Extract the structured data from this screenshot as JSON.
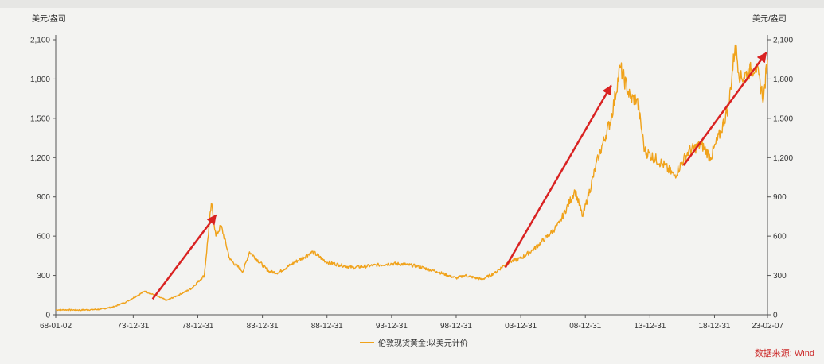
{
  "chart_data": {
    "type": "line",
    "y_unit_left": "美元/盎司",
    "y_unit_right": "美元/盎司",
    "ylim": [
      0,
      2100
    ],
    "y_ticks": [
      0,
      300,
      600,
      900,
      "1,200",
      "1,500",
      "1,800",
      "2,100"
    ],
    "y_tick_labels": [
      "0",
      "300",
      "600",
      "900",
      "1,200",
      "1,500",
      "1,800",
      "2,100"
    ],
    "x_tick_labels": [
      "68-01-02",
      "73-12-31",
      "78-12-31",
      "83-12-31",
      "88-12-31",
      "93-12-31",
      "98-12-31",
      "03-12-31",
      "08-12-31",
      "13-12-31",
      "18-12-31",
      "23-02-07"
    ],
    "x_tick_years": [
      1968.0,
      1974.0,
      1979.0,
      1984.0,
      1989.0,
      1994.0,
      1999.0,
      2004.0,
      2009.0,
      2014.0,
      2019.0,
      2023.1
    ],
    "grid": false,
    "legend_position": "bottom-center",
    "series": [
      {
        "name": "伦敦现货黄金:以美元计价",
        "color": "#f0a21a",
        "x": [
          1968.0,
          1970.0,
          1971.5,
          1972.5,
          1973.5,
          1974.9,
          1976.6,
          1977.5,
          1978.5,
          1979.5,
          1980.05,
          1980.4,
          1980.8,
          1981.5,
          1982.5,
          1983.0,
          1984.5,
          1985.2,
          1986.5,
          1987.9,
          1989.0,
          1990.0,
          1991.0,
          1993.0,
          1994.0,
          1995.0,
          1996.0,
          1997.5,
          1999.0,
          1999.7,
          2001.0,
          2002.0,
          2003.0,
          2004.0,
          2005.0,
          2006.3,
          2007.0,
          2008.2,
          2008.8,
          2010.0,
          2011.0,
          2011.7,
          2012.5,
          2013.0,
          2013.6,
          2015.0,
          2015.9,
          2017.0,
          2018.0,
          2018.7,
          2019.5,
          2020.1,
          2020.6,
          2021.0,
          2022.2,
          2022.8,
          2023.1
        ],
        "values": [
          38,
          36,
          42,
          60,
          100,
          180,
          110,
          150,
          200,
          300,
          850,
          600,
          680,
          420,
          330,
          480,
          330,
          320,
          400,
          480,
          400,
          380,
          360,
          380,
          390,
          385,
          370,
          330,
          280,
          300,
          270,
          320,
          400,
          430,
          500,
          620,
          700,
          950,
          750,
          1200,
          1500,
          1890,
          1650,
          1650,
          1250,
          1150,
          1060,
          1250,
          1300,
          1200,
          1400,
          1600,
          2060,
          1800,
          1900,
          1650,
          1950
        ]
      }
    ]
  },
  "source_label": "数据来源: Wind"
}
